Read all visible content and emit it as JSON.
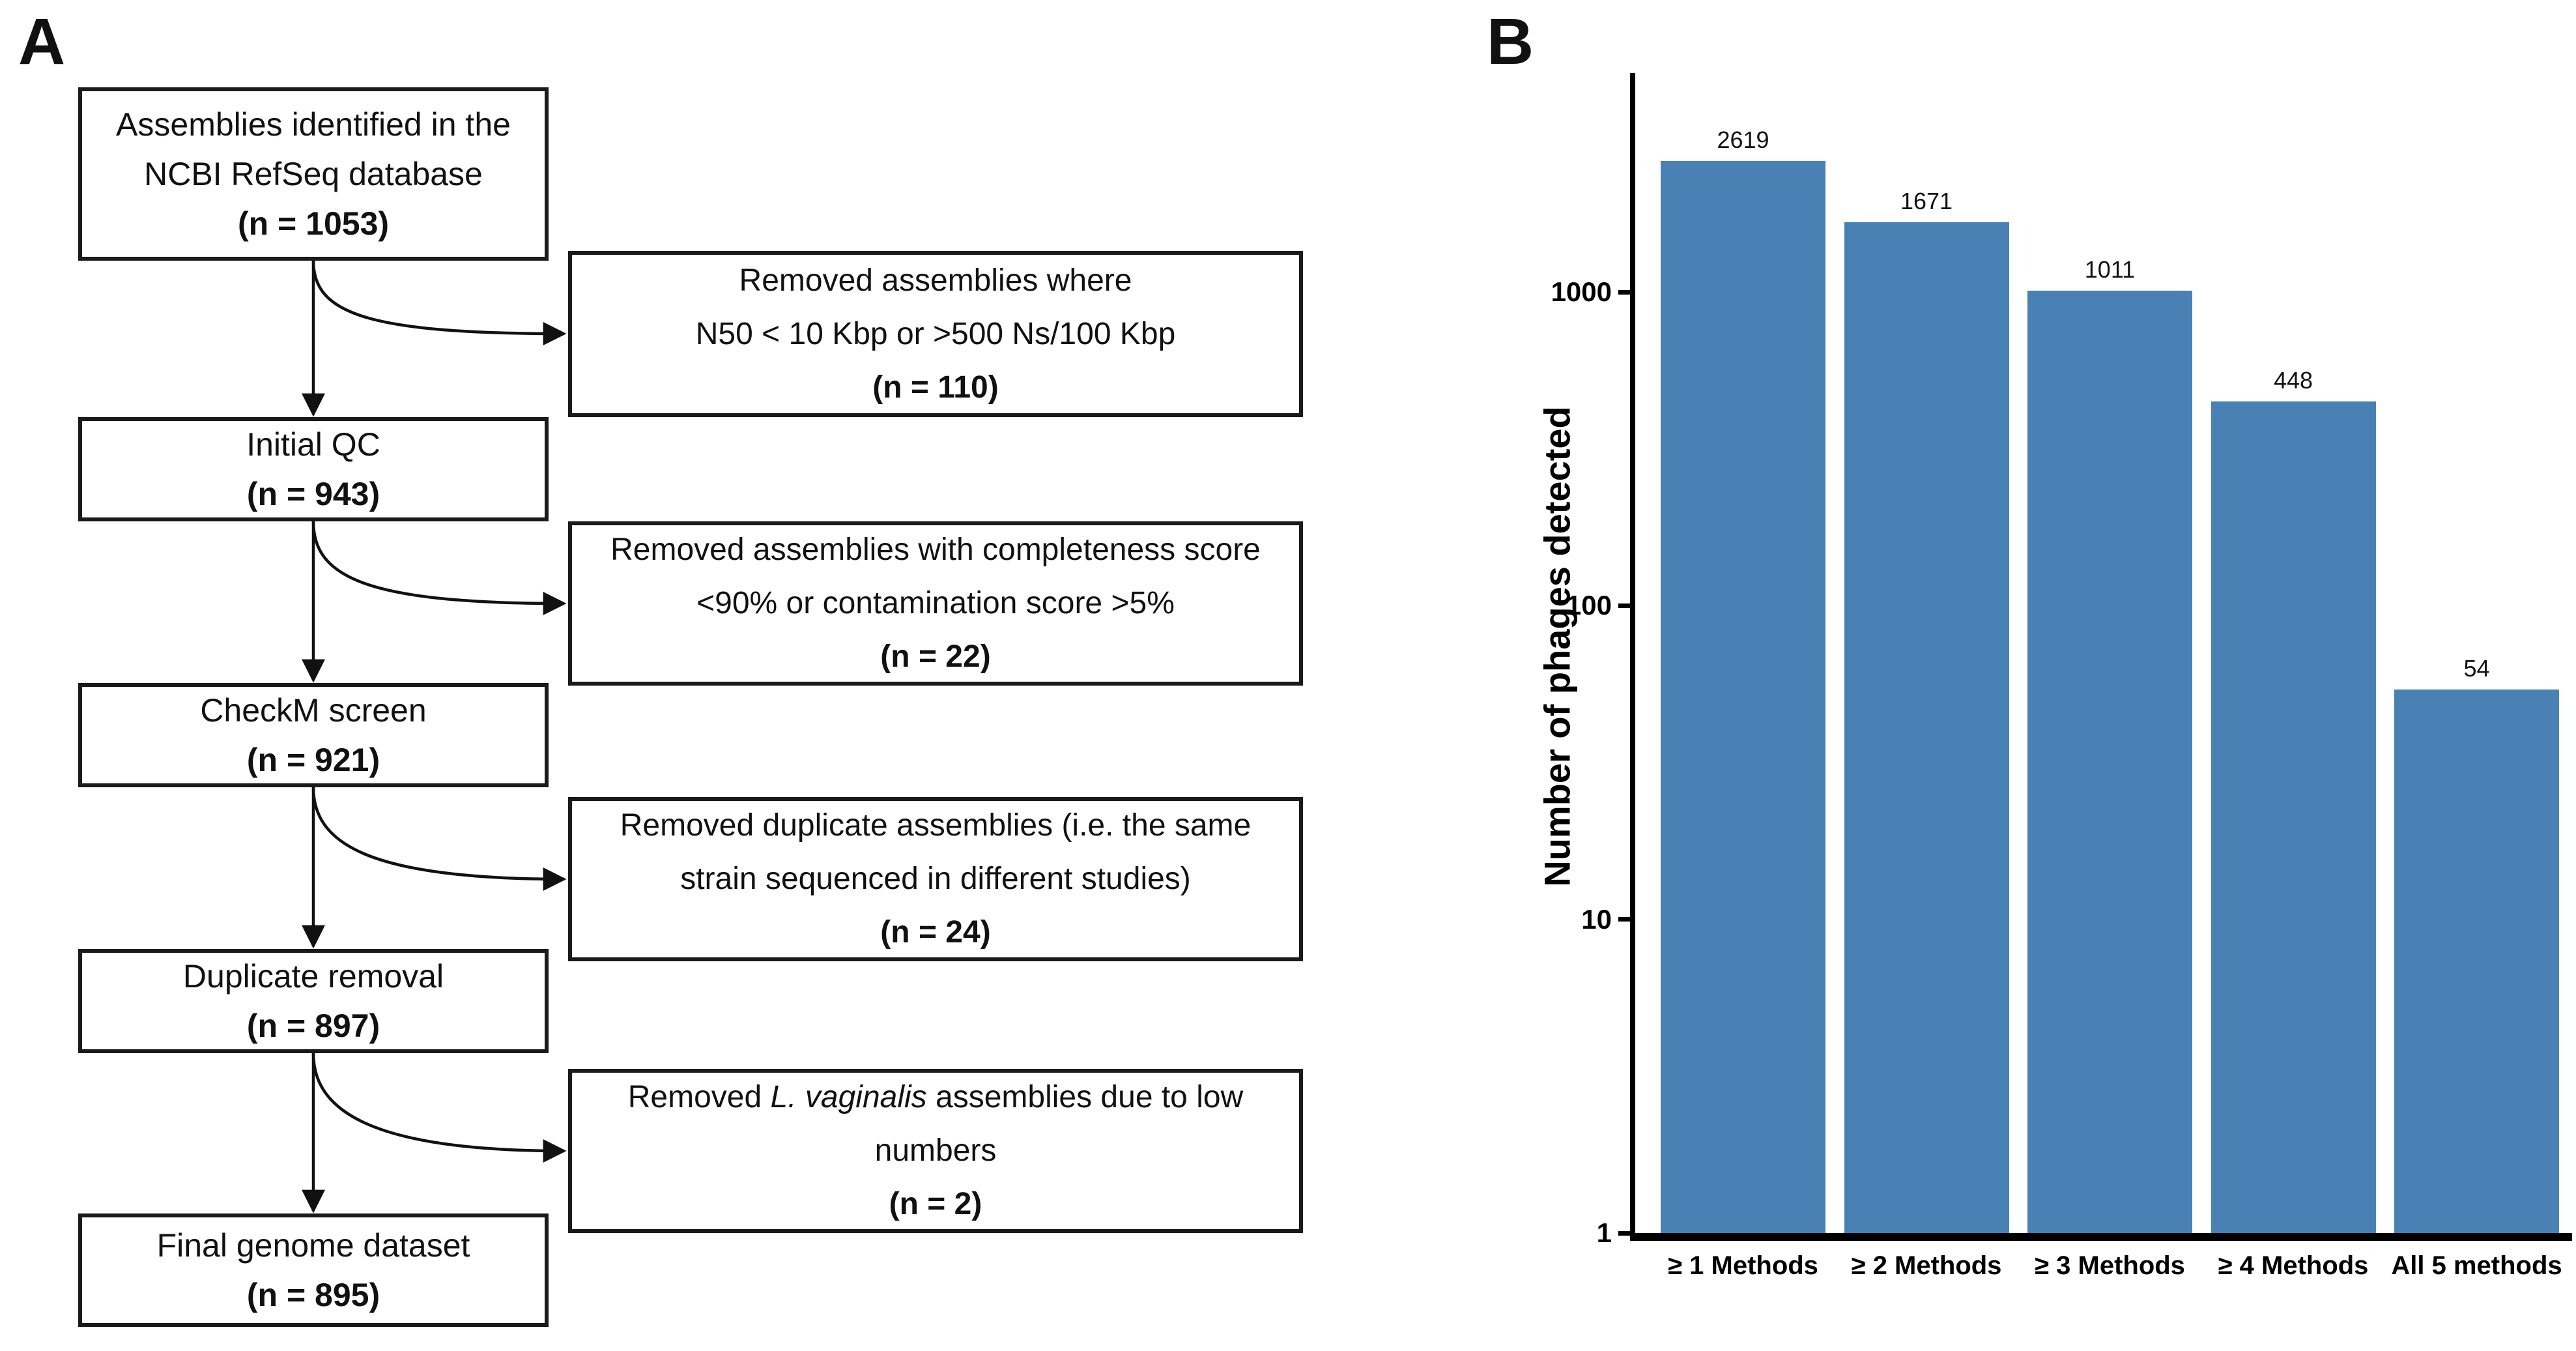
{
  "panels": {
    "a_label": "A",
    "b_label": "B"
  },
  "flowchart": {
    "main_boxes": [
      {
        "line1": "Assemblies identified in the",
        "line2": "NCBI RefSeq database",
        "count": "(n = 1053)"
      },
      {
        "line1": "Initial QC",
        "count": "(n = 943)"
      },
      {
        "line1": "CheckM screen",
        "count": "(n = 921)"
      },
      {
        "line1": "Duplicate removal",
        "count": "(n = 897)"
      },
      {
        "line1": "Final genome dataset",
        "count": "(n = 895)"
      }
    ],
    "side_boxes": [
      {
        "line1": "Removed assemblies where",
        "line2": "N50 < 10 Kbp or >500 Ns/100 Kbp",
        "count": "(n = 110)"
      },
      {
        "line1": "Removed assemblies with completeness score",
        "line2": "<90% or contamination score >5%",
        "count": "(n = 22)"
      },
      {
        "line1": "Removed duplicate assemblies (i.e. the same",
        "line2": "strain sequenced in different studies)",
        "count": "(n = 24)"
      },
      {
        "line1_pre": "Removed ",
        "line1_italic": "L. vaginalis",
        "line1_post": " assemblies due to low",
        "line2": "numbers",
        "count": "(n = 2)"
      }
    ]
  },
  "chart_data": {
    "type": "bar",
    "categories": [
      "≥ 1 Methods",
      "≥ 2 Methods",
      "≥ 3 Methods",
      "≥ 4 Methods",
      "All 5 methods"
    ],
    "values": [
      2619,
      1671,
      1011,
      448,
      54
    ],
    "value_labels": [
      "2619",
      "1671",
      "1011",
      "448",
      "54"
    ],
    "title": "",
    "xlabel": "",
    "ylabel": "Number of phages detected",
    "yscale": "log",
    "yticks": [
      1,
      10,
      100,
      1000
    ],
    "ylim": [
      1,
      5000
    ],
    "grid": false,
    "legend": false,
    "bar_color": "#4A81B4"
  }
}
